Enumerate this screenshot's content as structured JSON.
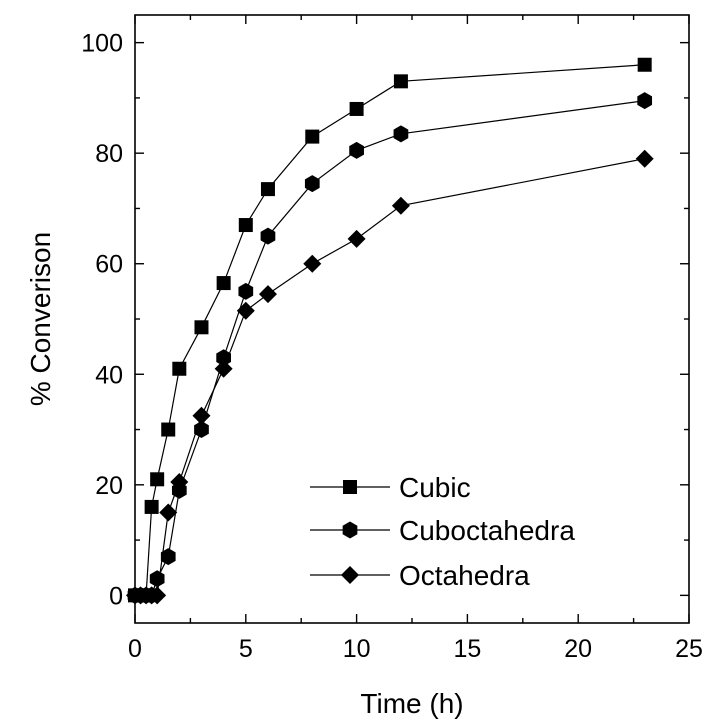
{
  "chart_data": {
    "type": "line",
    "xlabel": "Time (h)",
    "ylabel": "% Converison",
    "xlim": [
      0,
      25
    ],
    "ylim": [
      -5,
      105
    ],
    "xticks": [
      0,
      5,
      10,
      15,
      20,
      25
    ],
    "yticks": [
      0,
      20,
      40,
      60,
      80,
      100
    ],
    "xtick_labels": [
      "0",
      "5",
      "10",
      "15",
      "20",
      "25"
    ],
    "ytick_labels": [
      "0",
      "20",
      "40",
      "60",
      "80",
      "100"
    ],
    "grid": false,
    "legend_position": "bottom-right",
    "series": [
      {
        "name": "Cubic",
        "marker": "square",
        "color": "#000000",
        "x": [
          0,
          0.25,
          0.5,
          0.75,
          1,
          1.5,
          2,
          3,
          4,
          5,
          6,
          8,
          10,
          12,
          23
        ],
        "y": [
          0,
          0,
          0,
          16,
          21,
          30,
          41,
          48.5,
          56.5,
          67,
          73.5,
          83,
          88,
          93,
          96
        ]
      },
      {
        "name": "Cuboctahedra",
        "marker": "hexagon",
        "color": "#000000",
        "x": [
          0,
          0.25,
          0.5,
          0.75,
          1,
          1.5,
          2,
          3,
          4,
          5,
          6,
          8,
          10,
          12,
          23
        ],
        "y": [
          0,
          0,
          0,
          0,
          3,
          7,
          19,
          30,
          43,
          55,
          65,
          74.5,
          80.5,
          83.5,
          89.5
        ]
      },
      {
        "name": "Octahedra",
        "marker": "diamond",
        "color": "#000000",
        "x": [
          0,
          0.25,
          0.5,
          0.75,
          1,
          1.5,
          2,
          3,
          4,
          5,
          6,
          8,
          10,
          12,
          23
        ],
        "y": [
          0,
          0,
          0,
          0,
          0,
          15,
          20.5,
          32.5,
          41,
          51.5,
          54.5,
          60,
          64.5,
          70.5,
          79
        ]
      }
    ]
  }
}
